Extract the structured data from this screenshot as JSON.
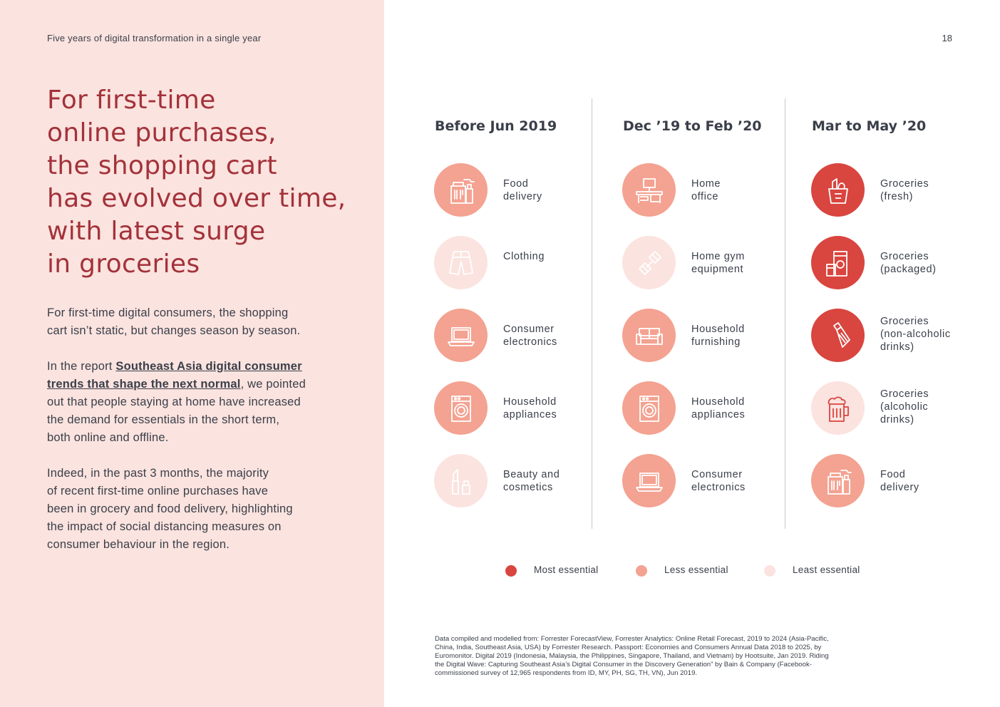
{
  "running_head": "Five years of digital transformation in a single year",
  "page_number": "18",
  "headline": [
    "For first-time",
    "online purchases,",
    "the shopping cart",
    "has evolved over time,",
    "with latest surge",
    "in groceries"
  ],
  "body": {
    "p1": [
      "For first-time digital consumers, the shopping",
      "cart isn’t static, but changes season by season."
    ],
    "p2": {
      "intro": "In the report ",
      "link_line1": "Southeast Asia digital consumer ",
      "link_line2": "trends that shape the next normal",
      "rest_line2": ", we pointed",
      "lines": [
        "out that people staying at home have increased",
        "the demand for essentials in the short term,",
        "both online and offline."
      ]
    },
    "p3": [
      "Indeed, in the past 3 months, the majority",
      "of recent first-time online purchases have",
      "been in grocery and food delivery, highlighting",
      "the impact of social distancing measures on",
      "consumer behaviour in the region."
    ]
  },
  "columns": [
    {
      "header": "Before Jun 2019",
      "items": [
        {
          "label": [
            "Food",
            "delivery"
          ],
          "level": "less",
          "icon": "food-delivery-icon"
        },
        {
          "label": [
            "Clothing"
          ],
          "level": "least",
          "icon": "clothing-icon"
        },
        {
          "label": [
            "Consumer",
            "electronics"
          ],
          "level": "less",
          "icon": "laptop-icon"
        },
        {
          "label": [
            "Household",
            "appliances"
          ],
          "level": "less",
          "icon": "washing-machine-icon"
        },
        {
          "label": [
            "Beauty and",
            "cosmetics"
          ],
          "level": "least",
          "icon": "cosmetics-icon"
        }
      ]
    },
    {
      "header": "Dec ’19 to Feb ’20",
      "items": [
        {
          "label": [
            "Home",
            "office"
          ],
          "level": "less",
          "icon": "home-office-icon"
        },
        {
          "label": [
            "Home gym",
            "equipment"
          ],
          "level": "least",
          "icon": "dumbbell-icon"
        },
        {
          "label": [
            "Household",
            "furnishing"
          ],
          "level": "less",
          "icon": "sofa-icon"
        },
        {
          "label": [
            "Household",
            "appliances"
          ],
          "level": "less",
          "icon": "washing-machine-icon"
        },
        {
          "label": [
            "Consumer",
            "electronics"
          ],
          "level": "less",
          "icon": "laptop-icon"
        }
      ]
    },
    {
      "header": "Mar to May ’20",
      "items": [
        {
          "label": [
            "Groceries",
            "(fresh)"
          ],
          "level": "most",
          "icon": "grocery-bag-icon"
        },
        {
          "label": [
            "Groceries",
            "(packaged)"
          ],
          "level": "most",
          "icon": "packaged-food-icon"
        },
        {
          "label": [
            "Groceries",
            "(non-alcoholic",
            "drinks)"
          ],
          "level": "most",
          "icon": "bottle-icon"
        },
        {
          "label": [
            "Groceries",
            "(alcoholic",
            "drinks)"
          ],
          "level": "least",
          "icon": "beer-mug-icon"
        },
        {
          "label": [
            "Food",
            "delivery"
          ],
          "level": "less",
          "icon": "food-delivery-icon"
        }
      ]
    }
  ],
  "legend": [
    {
      "label": "Most essential",
      "color": "#d9453f"
    },
    {
      "label": "Less essential",
      "color": "#f4a291"
    },
    {
      "label": "Least essential",
      "color": "#fbe3df"
    }
  ],
  "footnote": [
    "Data compiled and modelled from: Forrester ForecastView, Forrester Analytics: Online Retail Forecast, 2019 to 2024 (Asia-Pacific,",
    "China, India, Southeast Asia, USA) by Forrester Research. Passport: Economies and Consumers Annual Data 2018 to 2025, by",
    "Euromonitor. Digital 2019 (Indonesia, Malaysia, the Philippines, Singapore, Thailand, and Vietnam) by Hootsuite, Jan 2019. Riding",
    "the Digital Wave: Capturing Southeast Asia’s Digital Consumer in the Discovery Generation” by Bain & Company (Facebook-",
    "commissioned survey of 12,965 respondents from ID, MY, PH, SG, TH, VN), Jun 2019."
  ]
}
